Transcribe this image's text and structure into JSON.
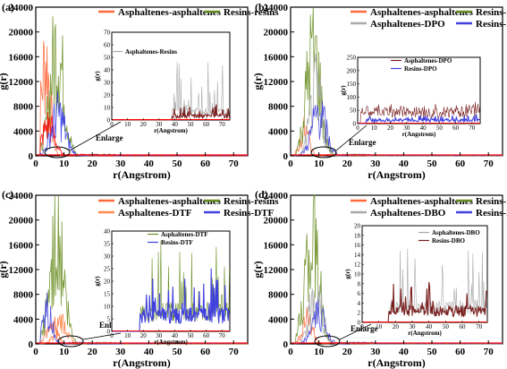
{
  "chart_data": [
    {
      "type": "line",
      "panel_label": "(a)",
      "xlabel": "r(Angstrom)",
      "ylabel": "g(r)",
      "xlim": [
        0,
        75
      ],
      "ylim": [
        0,
        24000
      ],
      "xticks": [
        "0",
        "10",
        "20",
        "30",
        "40",
        "50",
        "60",
        "70"
      ],
      "yticks": [
        "0",
        "4000",
        "8000",
        "12000",
        "16000",
        "20000",
        "24000"
      ],
      "series": [
        {
          "name": "Asphaltenes-asphaltenes",
          "color": "#ff6a3d",
          "peak_r": 3.5,
          "peak_g": 21000,
          "width": 2.2,
          "tail": 0
        },
        {
          "name": "Resins-resins",
          "color": "#6b8e23",
          "peak_r": 7.5,
          "peak_g": 23500,
          "width": 3.5,
          "tail": 0
        }
      ],
      "extra": [
        {
          "color": "#ff0000",
          "peak_r": 4.5,
          "peak_g": 6800,
          "width": 3,
          "tail": 0
        },
        {
          "color": "#3a3af0",
          "peak_r": 8,
          "peak_g": 9000,
          "width": 3.5,
          "tail": 30
        }
      ],
      "annotation": "Enlarge",
      "inset": {
        "xlabel": "r(Angstrom)",
        "ylabel": "g(r)",
        "xlim": [
          0,
          75
        ],
        "ylim": [
          0,
          70
        ],
        "xticks": [
          "0",
          "10",
          "20",
          "30",
          "40",
          "50",
          "60",
          "70"
        ],
        "yticks": [
          "0",
          "10",
          "20",
          "30",
          "40",
          "50",
          "60",
          "70"
        ],
        "series": [
          {
            "name": "Asphaltenes-Resins",
            "color": "#a9a9a9",
            "start": 38,
            "level": 8,
            "spike": 40
          },
          {
            "name": "",
            "color": "#7a1f1f",
            "start": 38,
            "level": 4,
            "spike": 8
          }
        ]
      }
    },
    {
      "type": "line",
      "panel_label": "(b)",
      "xlabel": "r(Angstrom)",
      "ylabel": "g(r)",
      "xlim": [
        0,
        75
      ],
      "ylim": [
        0,
        24000
      ],
      "xticks": [
        "0",
        "10",
        "20",
        "30",
        "40",
        "50",
        "60",
        "70"
      ],
      "yticks": [
        "0",
        "4000",
        "8000",
        "12000",
        "16000",
        "20000",
        "24000"
      ],
      "series": [
        {
          "name": "Asphaltenes-asphaltenes",
          "color": "#ff6a3d",
          "peak_r": 5,
          "peak_g": 5500,
          "width": 2.2,
          "tail": 0
        },
        {
          "name": "Resins-resins",
          "color": "#6b8e23",
          "peak_r": 8,
          "peak_g": 23000,
          "width": 3.5,
          "tail": 0
        },
        {
          "name": "Asphaltenes-DPO",
          "color": "#a9a9a9",
          "peak_r": 9,
          "peak_g": 14000,
          "width": 3,
          "tail": 0
        },
        {
          "name": "Resins-DPO",
          "color": "#4040e0",
          "peak_r": 10,
          "peak_g": 9500,
          "width": 3.5,
          "tail": 30
        }
      ],
      "extra": [],
      "annotation": "Enlarge",
      "inset": {
        "xlabel": "r(Angstrom)",
        "ylabel": "g(r)",
        "xlim": [
          0,
          75
        ],
        "ylim": [
          0,
          250
        ],
        "xticks": [
          "0",
          "10",
          "20",
          "30",
          "40",
          "50",
          "60",
          "70"
        ],
        "yticks": [
          "0",
          "50",
          "100",
          "150",
          "200",
          "250"
        ],
        "series": [
          {
            "name": "Asphaltenes-DPO",
            "color": "#7a1f1f",
            "start": 2,
            "level": 55,
            "spike": 25
          },
          {
            "name": "Resins-DPO",
            "color": "#4040e0",
            "start": 5,
            "level": 15,
            "spike": 20
          }
        ]
      }
    },
    {
      "type": "line",
      "panel_label": "(c)",
      "xlabel": "r(Angstrom)",
      "ylabel": "g(r)",
      "xlim": [
        0,
        75
      ],
      "ylim": [
        0,
        24000
      ],
      "xticks": [
        "0",
        "10",
        "20",
        "30",
        "40",
        "50",
        "60",
        "70"
      ],
      "yticks": [
        "0",
        "4000",
        "8000",
        "12000",
        "16000",
        "20000",
        "24000"
      ],
      "series": [
        {
          "name": "Asphaltenes-asphaltenes",
          "color": "#ff6a3d",
          "peak_r": 5.5,
          "peak_g": 5000,
          "width": 2.5,
          "tail": 0
        },
        {
          "name": "Resins-resins",
          "color": "#6b8e23",
          "peak_r": 7.5,
          "peak_g": 23500,
          "width": 3.5,
          "tail": 0
        },
        {
          "name": "Asphaltenes-DTF",
          "color": "#ff8a50",
          "peak_r": 9,
          "peak_g": 4500,
          "width": 3,
          "tail": 0
        },
        {
          "name": "Resins-DTF",
          "color": "#4040e0",
          "peak_r": 4,
          "peak_g": 7500,
          "width": 2.5,
          "tail": 30
        }
      ],
      "extra": [],
      "annotation": "Enlarge",
      "inset": {
        "xlabel": "r(Angstrom)",
        "ylabel": "g(r)",
        "xlim": [
          0,
          75
        ],
        "ylim": [
          0,
          40
        ],
        "xticks": [
          "0",
          "10",
          "20",
          "30",
          "40",
          "50",
          "60",
          "70"
        ],
        "yticks": [
          "0",
          "5",
          "10",
          "15",
          "20",
          "25",
          "30",
          "35",
          "40"
        ],
        "series": [
          {
            "name": "Asphaltenes-DTF",
            "color": "#6b8e23",
            "start": 18,
            "level": 10,
            "spike": 25
          },
          {
            "name": "Resins-DTF",
            "color": "#4040e0",
            "start": 18,
            "level": 8,
            "spike": 20
          }
        ]
      }
    },
    {
      "type": "line",
      "panel_label": "(d)",
      "xlabel": "r(Angstrom)",
      "ylabel": "g(r)",
      "xlim": [
        0,
        75
      ],
      "ylim": [
        0,
        24000
      ],
      "xticks": [
        "0",
        "10",
        "20",
        "30",
        "40",
        "50",
        "60",
        "70"
      ],
      "yticks": [
        "0",
        "4000",
        "8000",
        "12000",
        "16000",
        "20000",
        "24000"
      ],
      "series": [
        {
          "name": "Asphaltenes-asphaltenes",
          "color": "#ff6a3d",
          "peak_r": 6,
          "peak_g": 5500,
          "width": 2.5,
          "tail": 0
        },
        {
          "name": "Resins-resins",
          "color": "#6b8e23",
          "peak_r": 7.5,
          "peak_g": 23500,
          "width": 3.5,
          "tail": 0
        },
        {
          "name": "Asphaltenes-DBO",
          "color": "#a9a9a9",
          "peak_r": 9,
          "peak_g": 12000,
          "width": 3,
          "tail": 0
        },
        {
          "name": "Resins-DBO",
          "color": "#4040e0",
          "peak_r": 10,
          "peak_g": 6000,
          "width": 3.5,
          "tail": 30
        }
      ],
      "extra": [],
      "annotation": "Enlarge",
      "inset": {
        "xlabel": "r(Angstrom)",
        "ylabel": "g(r)",
        "xlim": [
          0,
          75
        ],
        "ylim": [
          0,
          20
        ],
        "xticks": [
          "0",
          "10",
          "20",
          "30",
          "40",
          "50",
          "60",
          "70"
        ],
        "yticks": [
          "0",
          "2",
          "4",
          "6",
          "8",
          "10",
          "12",
          "14",
          "16",
          "18",
          "20"
        ],
        "series": [
          {
            "name": "Asphaltenes-DBO",
            "color": "#a9a9a9",
            "start": 16,
            "level": 4,
            "spike": 12
          },
          {
            "name": "Resins-DBO",
            "color": "#7a1f1f",
            "start": 16,
            "level": 3,
            "spike": 5
          }
        ]
      }
    }
  ]
}
